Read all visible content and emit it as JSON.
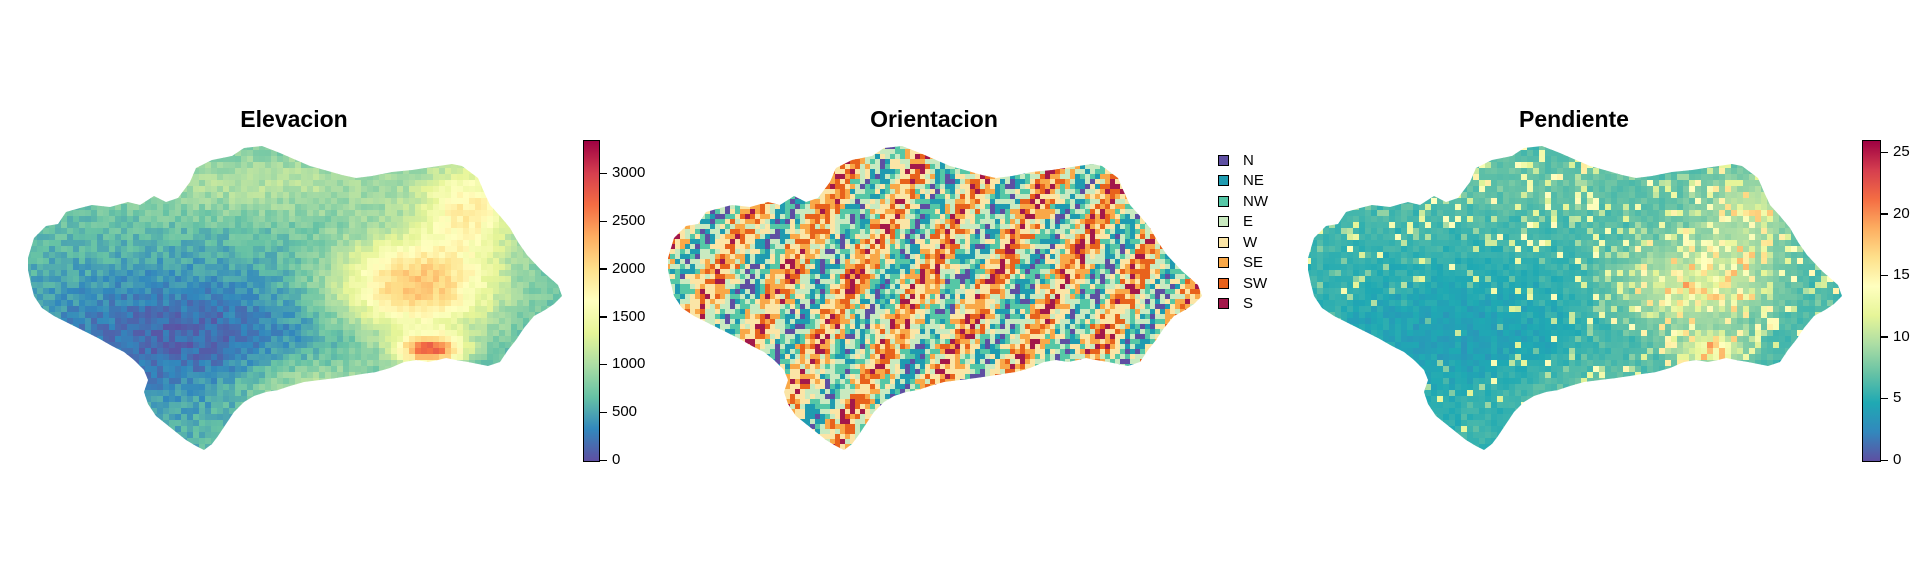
{
  "panels": [
    {
      "id": "elevacion",
      "title": "Elevacion",
      "legend_type": "continuous",
      "colorbar_ticks": [
        "0",
        "500",
        "1000",
        "1500",
        "2000",
        "2500",
        "3000"
      ],
      "colorbar_tick_values": [
        0,
        500,
        1000,
        1500,
        2000,
        2500,
        3000
      ],
      "range": [
        0,
        3350
      ],
      "palette": [
        "#5e4fa2",
        "#3288bd",
        "#66c2a5",
        "#abdda4",
        "#e6f598",
        "#ffffbf",
        "#fee08b",
        "#fdae61",
        "#f46d43",
        "#d53e4f",
        "#9e0142"
      ]
    },
    {
      "id": "orientacion",
      "title": "Orientacion",
      "legend_type": "categorical",
      "categories": [
        {
          "label": "N",
          "color": "#5e4fa2"
        },
        {
          "label": "NE",
          "color": "#1f9bb0"
        },
        {
          "label": "NW",
          "color": "#55c7a6"
        },
        {
          "label": "E",
          "color": "#c9eac0"
        },
        {
          "label": "W",
          "color": "#fbe5a6"
        },
        {
          "label": "SE",
          "color": "#f9a848"
        },
        {
          "label": "SW",
          "color": "#e8621c"
        },
        {
          "label": "S",
          "color": "#a3184a"
        }
      ]
    },
    {
      "id": "pendiente",
      "title": "Pendiente",
      "legend_type": "continuous",
      "colorbar_ticks": [
        "0",
        "5",
        "10",
        "15",
        "20",
        "25"
      ],
      "colorbar_tick_values": [
        0,
        5,
        10,
        15,
        20,
        25
      ],
      "range": [
        0,
        26
      ],
      "palette": [
        "#5e4fa2",
        "#3288bd",
        "#1fa9b3",
        "#66c2a5",
        "#abdda4",
        "#e6f598",
        "#ffffbf",
        "#fee08b",
        "#fdae61",
        "#f46d43",
        "#d53e4f",
        "#9e0142"
      ]
    }
  ]
}
